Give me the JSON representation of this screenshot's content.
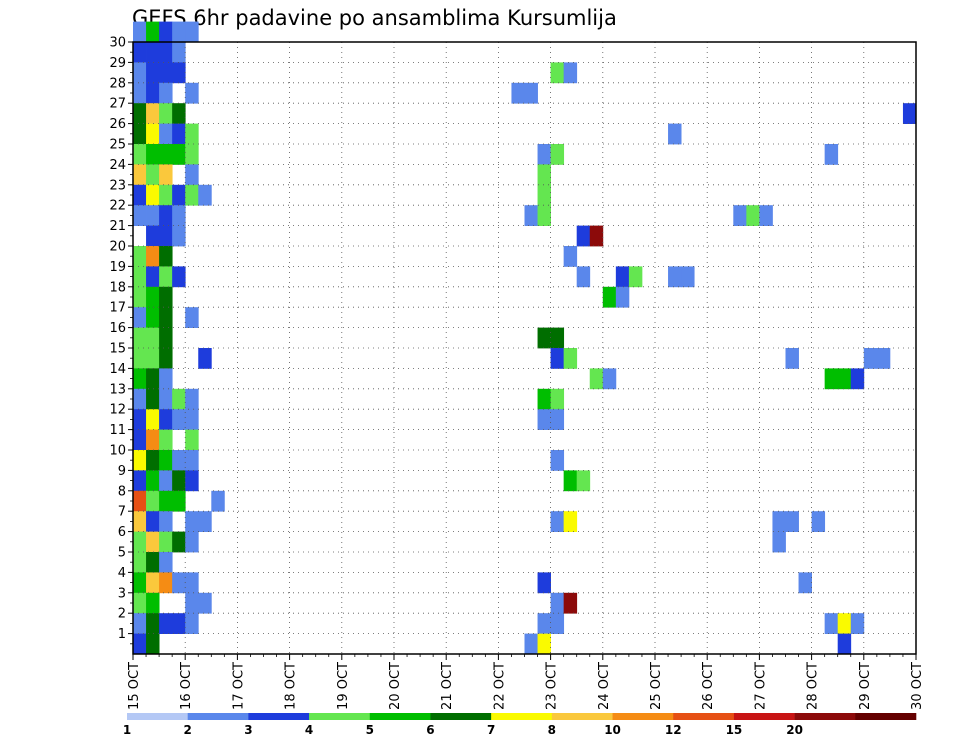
{
  "chart_data": {
    "type": "heatmap",
    "title": "GEFS 6hr padavine po ansamblima Kursumlija",
    "x_tick_labels": [
      "15 OCT",
      "16 OCT",
      "17 OCT",
      "18 OCT",
      "19 OCT",
      "20 OCT",
      "21 OCT",
      "22 OCT",
      "23 OCT",
      "24 OCT",
      "25 OCT",
      "26 OCT",
      "27 OCT",
      "28 OCT",
      "29 OCT",
      "30 OCT"
    ],
    "x_range_days": [
      0,
      15
    ],
    "y_tick_labels": [
      "1",
      "2",
      "3",
      "4",
      "5",
      "6",
      "7",
      "8",
      "9",
      "10",
      "11",
      "12",
      "13",
      "14",
      "15",
      "16",
      "17",
      "18",
      "19",
      "20",
      "21",
      "22",
      "23",
      "24",
      "25",
      "26",
      "27",
      "28",
      "29",
      "30"
    ],
    "y_range": [
      0,
      30
    ],
    "grid": "dotted",
    "colorbar": {
      "labels": [
        "1",
        "2",
        "3",
        "4",
        "5",
        "6",
        "7",
        "8",
        "10",
        "12",
        "15",
        "20"
      ],
      "colors": [
        "#b4c8f5",
        "#5a87eb",
        "#1e3cdc",
        "#64e650",
        "#00be00",
        "#006e00",
        "#fafa00",
        "#fac83c",
        "#f58c14",
        "#e65014",
        "#c81414",
        "#8c0a0a",
        "#640000"
      ]
    },
    "cells": [
      [
        30,
        0,
        1
      ],
      [
        30,
        1,
        4
      ],
      [
        30,
        2,
        2
      ],
      [
        30,
        3,
        1
      ],
      [
        30,
        4,
        1
      ],
      [
        29,
        0,
        2
      ],
      [
        29,
        1,
        2
      ],
      [
        29,
        2,
        2
      ],
      [
        29,
        3,
        1
      ],
      [
        28,
        0,
        1
      ],
      [
        28,
        1,
        2
      ],
      [
        28,
        2,
        2
      ],
      [
        28,
        3,
        2
      ],
      [
        28,
        32,
        3
      ],
      [
        28,
        33,
        1
      ],
      [
        27,
        0,
        1
      ],
      [
        27,
        1,
        2
      ],
      [
        27,
        2,
        1
      ],
      [
        27,
        4,
        1
      ],
      [
        27,
        29,
        1
      ],
      [
        27,
        30,
        1
      ],
      [
        26,
        0,
        5
      ],
      [
        26,
        1,
        7
      ],
      [
        26,
        2,
        3
      ],
      [
        26,
        3,
        5
      ],
      [
        26,
        59,
        2
      ],
      [
        25,
        0,
        5
      ],
      [
        25,
        1,
        6
      ],
      [
        25,
        2,
        1
      ],
      [
        25,
        3,
        2
      ],
      [
        25,
        4,
        3
      ],
      [
        25,
        41,
        1
      ],
      [
        24,
        0,
        3
      ],
      [
        24,
        1,
        4
      ],
      [
        24,
        2,
        4
      ],
      [
        24,
        3,
        4
      ],
      [
        24,
        4,
        3
      ],
      [
        24,
        31,
        1
      ],
      [
        24,
        32,
        3
      ],
      [
        24,
        53,
        1
      ],
      [
        23,
        0,
        7
      ],
      [
        23,
        1,
        3
      ],
      [
        23,
        2,
        7
      ],
      [
        23,
        4,
        1
      ],
      [
        23,
        31,
        3
      ],
      [
        22,
        0,
        2
      ],
      [
        22,
        1,
        6
      ],
      [
        22,
        2,
        3
      ],
      [
        22,
        3,
        2
      ],
      [
        22,
        4,
        3
      ],
      [
        22,
        5,
        1
      ],
      [
        22,
        31,
        3
      ],
      [
        21,
        0,
        1
      ],
      [
        21,
        1,
        1
      ],
      [
        21,
        2,
        2
      ],
      [
        21,
        3,
        1
      ],
      [
        21,
        30,
        1
      ],
      [
        21,
        31,
        3
      ],
      [
        21,
        46,
        1
      ],
      [
        21,
        47,
        3
      ],
      [
        21,
        48,
        1
      ],
      [
        20,
        1,
        2
      ],
      [
        20,
        2,
        2
      ],
      [
        20,
        3,
        1
      ],
      [
        20,
        34,
        2
      ],
      [
        20,
        35,
        11
      ],
      [
        19,
        0,
        3
      ],
      [
        19,
        1,
        8
      ],
      [
        19,
        2,
        5
      ],
      [
        19,
        33,
        1
      ],
      [
        18,
        0,
        3
      ],
      [
        18,
        1,
        2
      ],
      [
        18,
        2,
        3
      ],
      [
        18,
        3,
        2
      ],
      [
        18,
        34,
        1
      ],
      [
        18,
        37,
        2
      ],
      [
        18,
        38,
        3
      ],
      [
        18,
        41,
        1
      ],
      [
        18,
        42,
        1
      ],
      [
        17,
        0,
        3
      ],
      [
        17,
        1,
        4
      ],
      [
        17,
        2,
        5
      ],
      [
        17,
        36,
        4
      ],
      [
        17,
        37,
        1
      ],
      [
        16,
        0,
        1
      ],
      [
        16,
        1,
        4
      ],
      [
        16,
        2,
        5
      ],
      [
        16,
        4,
        1
      ],
      [
        15,
        0,
        3
      ],
      [
        15,
        1,
        3
      ],
      [
        15,
        2,
        5
      ],
      [
        15,
        31,
        5
      ],
      [
        15,
        32,
        5
      ],
      [
        14,
        0,
        3
      ],
      [
        14,
        1,
        3
      ],
      [
        14,
        2,
        5
      ],
      [
        14,
        5,
        2
      ],
      [
        14,
        32,
        2
      ],
      [
        14,
        33,
        3
      ],
      [
        14,
        50,
        1
      ],
      [
        14,
        56,
        1
      ],
      [
        14,
        57,
        1
      ],
      [
        13,
        0,
        4
      ],
      [
        13,
        1,
        5
      ],
      [
        13,
        2,
        1
      ],
      [
        13,
        35,
        3
      ],
      [
        13,
        36,
        1
      ],
      [
        13,
        53,
        4
      ],
      [
        13,
        54,
        4
      ],
      [
        13,
        55,
        2
      ],
      [
        12,
        0,
        1
      ],
      [
        12,
        1,
        5
      ],
      [
        12,
        2,
        1
      ],
      [
        12,
        3,
        3
      ],
      [
        12,
        4,
        1
      ],
      [
        12,
        31,
        4
      ],
      [
        12,
        32,
        3
      ],
      [
        11,
        0,
        2
      ],
      [
        11,
        1,
        6
      ],
      [
        11,
        2,
        2
      ],
      [
        11,
        3,
        1
      ],
      [
        11,
        4,
        1
      ],
      [
        11,
        31,
        1
      ],
      [
        11,
        32,
        1
      ],
      [
        10,
        0,
        2
      ],
      [
        10,
        1,
        8
      ],
      [
        10,
        2,
        3
      ],
      [
        10,
        4,
        3
      ],
      [
        9,
        0,
        6
      ],
      [
        9,
        1,
        5
      ],
      [
        9,
        2,
        4
      ],
      [
        9,
        3,
        1
      ],
      [
        9,
        4,
        1
      ],
      [
        9,
        32,
        1
      ],
      [
        8,
        0,
        2
      ],
      [
        8,
        1,
        4
      ],
      [
        8,
        2,
        1
      ],
      [
        8,
        3,
        5
      ],
      [
        8,
        4,
        2
      ],
      [
        8,
        33,
        4
      ],
      [
        8,
        34,
        3
      ],
      [
        7,
        0,
        9
      ],
      [
        7,
        1,
        3
      ],
      [
        7,
        2,
        4
      ],
      [
        7,
        3,
        4
      ],
      [
        7,
        6,
        1
      ],
      [
        6,
        0,
        7
      ],
      [
        6,
        1,
        2
      ],
      [
        6,
        2,
        1
      ],
      [
        6,
        4,
        1
      ],
      [
        6,
        5,
        1
      ],
      [
        6,
        32,
        1
      ],
      [
        6,
        33,
        6
      ],
      [
        6,
        49,
        1
      ],
      [
        6,
        50,
        1
      ],
      [
        6,
        52,
        1
      ],
      [
        5,
        0,
        3
      ],
      [
        5,
        1,
        7
      ],
      [
        5,
        2,
        3
      ],
      [
        5,
        3,
        5
      ],
      [
        5,
        4,
        1
      ],
      [
        5,
        49,
        1
      ],
      [
        4,
        0,
        3
      ],
      [
        4,
        1,
        5
      ],
      [
        4,
        2,
        1
      ],
      [
        3,
        0,
        4
      ],
      [
        3,
        1,
        7
      ],
      [
        3,
        2,
        8
      ],
      [
        3,
        3,
        1
      ],
      [
        3,
        4,
        1
      ],
      [
        3,
        31,
        2
      ],
      [
        3,
        51,
        1
      ],
      [
        2,
        0,
        3
      ],
      [
        2,
        1,
        4
      ],
      [
        2,
        4,
        1
      ],
      [
        2,
        5,
        1
      ],
      [
        2,
        32,
        1
      ],
      [
        2,
        33,
        11
      ],
      [
        1,
        0,
        1
      ],
      [
        1,
        1,
        5
      ],
      [
        1,
        2,
        2
      ],
      [
        1,
        3,
        2
      ],
      [
        1,
        4,
        1
      ],
      [
        1,
        31,
        1
      ],
      [
        1,
        32,
        1
      ],
      [
        1,
        53,
        1
      ],
      [
        1,
        54,
        6
      ],
      [
        1,
        55,
        1
      ],
      [
        0,
        0,
        2
      ],
      [
        0,
        1,
        5
      ],
      [
        0,
        30,
        1
      ],
      [
        0,
        31,
        6
      ],
      [
        0,
        54,
        2
      ]
    ]
  }
}
